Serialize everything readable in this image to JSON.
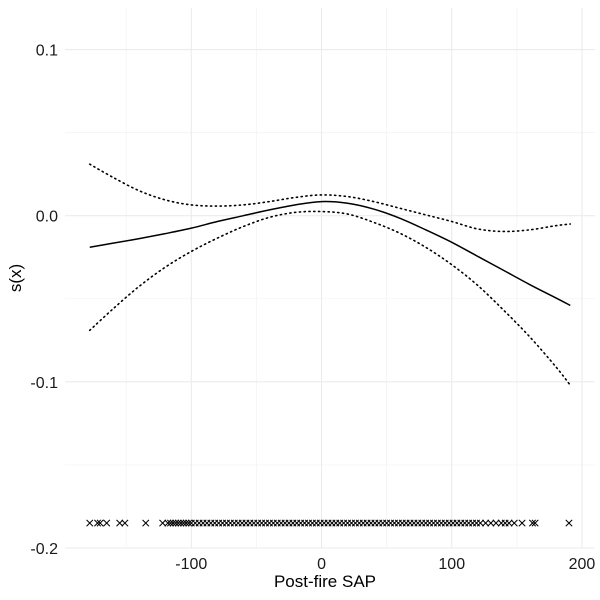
{
  "chart_data": {
    "type": "line",
    "title": "",
    "xlabel": "Post-fire SAP",
    "ylabel": "s(x)",
    "xlim": [
      -197,
      210
    ],
    "ylim": [
      -0.2,
      0.125
    ],
    "x_ticks": [
      -100,
      0,
      100,
      200
    ],
    "x_tick_labels": [
      "-100",
      "0",
      "100",
      "200"
    ],
    "y_ticks": [
      -0.2,
      -0.1,
      0.0,
      0.1
    ],
    "y_tick_labels": [
      "-0.2",
      "-0.1",
      "0.0",
      "0.1"
    ],
    "grid": true,
    "legend": "none",
    "series": [
      {
        "style": "solid",
        "x": [
          -178,
          -160,
          -140,
          -120,
          -100,
          -80,
          -60,
          -40,
          -20,
          0,
          20,
          40,
          60,
          80,
          100,
          120,
          140,
          160,
          180,
          191
        ],
        "y": [
          -0.019,
          -0.0165,
          -0.0138,
          -0.0108,
          -0.0075,
          -0.0035,
          0.0,
          0.0035,
          0.0065,
          0.0085,
          0.0075,
          0.004,
          -0.0015,
          -0.0085,
          -0.016,
          -0.0245,
          -0.033,
          -0.0415,
          -0.0495,
          -0.054
        ]
      },
      {
        "style": "dotted",
        "x": [
          -178,
          -160,
          -140,
          -120,
          -100,
          -80,
          -60,
          -40,
          -20,
          0,
          20,
          40,
          60,
          80,
          100,
          120,
          140,
          160,
          180,
          191
        ],
        "y": [
          0.031,
          0.023,
          0.015,
          0.0095,
          0.0065,
          0.0058,
          0.0065,
          0.0085,
          0.011,
          0.0125,
          0.0115,
          0.0085,
          0.0045,
          0.0005,
          -0.0035,
          -0.008,
          -0.0095,
          -0.0085,
          -0.006,
          -0.005
        ]
      },
      {
        "style": "dotted",
        "x": [
          -178,
          -160,
          -140,
          -120,
          -100,
          -80,
          -60,
          -40,
          -20,
          0,
          20,
          40,
          60,
          80,
          100,
          120,
          140,
          160,
          180,
          191
        ],
        "y": [
          -0.069,
          -0.056,
          -0.0425,
          -0.031,
          -0.0215,
          -0.0135,
          -0.0065,
          -0.001,
          0.002,
          0.0025,
          0.001,
          -0.004,
          -0.0105,
          -0.019,
          -0.0295,
          -0.042,
          -0.057,
          -0.073,
          -0.091,
          -0.102
        ]
      }
    ],
    "rug": {
      "marker": "x",
      "y": -0.185,
      "x": [
        -178,
        -172,
        -170,
        -165,
        -155,
        -151,
        -135,
        -122,
        -118,
        -116,
        -114,
        -112,
        -110,
        -108,
        -106,
        -104,
        -102,
        -100,
        -97,
        -94,
        -91,
        -88,
        -85,
        -82,
        -79,
        -76,
        -73,
        -70,
        -67,
        -64,
        -61,
        -58,
        -55,
        -52,
        -49,
        -46,
        -43,
        -40,
        -37,
        -34,
        -31,
        -28,
        -25,
        -22,
        -19,
        -16,
        -13,
        -10,
        -7,
        -4,
        -1,
        2,
        5,
        8,
        11,
        14,
        17,
        20,
        23,
        26,
        29,
        32,
        35,
        38,
        41,
        44,
        47,
        50,
        53,
        56,
        59,
        62,
        65,
        68,
        71,
        74,
        77,
        80,
        83,
        86,
        89,
        92,
        95,
        98,
        101,
        104,
        107,
        110,
        113,
        116,
        119,
        122,
        126,
        130,
        134,
        138,
        141,
        144,
        148,
        154,
        162,
        164,
        190
      ]
    }
  }
}
